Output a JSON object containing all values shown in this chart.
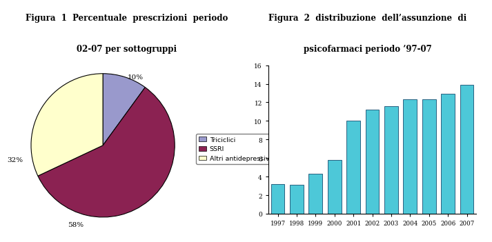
{
  "fig1_title_line1": "Figura  1  Percentuale  prescrizioni  periodo",
  "fig1_title_line2": "02-07 per sottogruppi",
  "pie_values": [
    10,
    58,
    32
  ],
  "pie_labels": [
    "Triciclici",
    "SSRI",
    "Altri antidepressivi"
  ],
  "pie_colors": [
    "#9999cc",
    "#8b2252",
    "#ffffcc"
  ],
  "pie_startangle": 90,
  "fig2_title_line1": "Figura  2  distribuzione  dell’assunzione  di",
  "fig2_title_line2": "psicofarmaci periodo ’97-07",
  "bar_years": [
    1997,
    1998,
    1999,
    2000,
    2001,
    2002,
    2003,
    2004,
    2005,
    2006,
    2007
  ],
  "bar_values": [
    3.2,
    3.1,
    4.3,
    5.8,
    10.0,
    11.2,
    11.6,
    12.3,
    12.3,
    12.9,
    13.9
  ],
  "bar_color": "#4dc8d8",
  "bar_edgecolor": "#2a6080",
  "bar_ylim": [
    0,
    16
  ],
  "bar_yticks": [
    0,
    2,
    4,
    6,
    8,
    10,
    12,
    14,
    16
  ],
  "legend_labels": [
    "Triciclici",
    "SSRI",
    "Altri antidepressivi"
  ],
  "legend_colors": [
    "#9999cc",
    "#8b2252",
    "#ffffcc"
  ],
  "bg_color": "#ffffff",
  "title_fontsize": 8.5,
  "label_fontsize": 7.5
}
